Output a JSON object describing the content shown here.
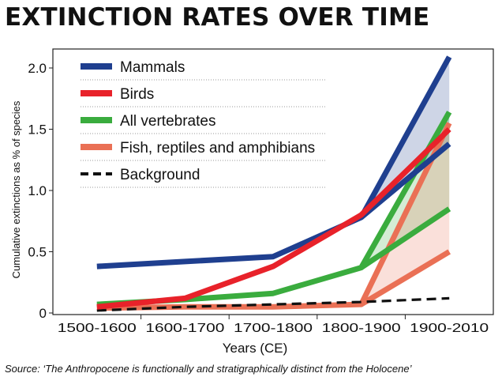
{
  "chart_data": {
    "type": "line",
    "title": "EXTINCTION RATES OVER TIME",
    "xlabel": "Years (CE)",
    "ylabel": "Cumulative extinctions as % of species",
    "categories": [
      "1500-1600",
      "1600-1700",
      "1700-1800",
      "1800-1900",
      "1900-2010"
    ],
    "ylim": [
      0,
      2.1
    ],
    "yticks": [
      0,
      0.5,
      1.0,
      1.5,
      2.0
    ],
    "ytick_labels": [
      "0",
      "0.5",
      "1.0",
      "1.5",
      "2.0"
    ],
    "grid": false,
    "legend_position": "top-left",
    "series": [
      {
        "name": "Mammals",
        "color": "#1f3f8f",
        "values": [
          0.38,
          0.42,
          0.46,
          0.78,
          2.09
        ],
        "final_range": [
          1.38,
          2.09
        ],
        "style": "solid"
      },
      {
        "name": "Birds",
        "color": "#e8222a",
        "values": [
          0.05,
          0.12,
          0.38,
          0.8,
          1.5
        ],
        "style": "solid"
      },
      {
        "name": "All vertebrates",
        "color": "#3aac3e",
        "values": [
          0.07,
          0.11,
          0.16,
          0.37,
          1.64
        ],
        "final_range": [
          0.85,
          1.64
        ],
        "style": "solid"
      },
      {
        "name": "Fish, reptiles and amphibians",
        "color": "#ea7055",
        "values": [
          0.04,
          0.05,
          0.05,
          0.07,
          1.55
        ],
        "final_range": [
          0.5,
          1.55
        ],
        "style": "solid"
      },
      {
        "name": "Background",
        "color": "#111111",
        "values": [
          0.02,
          0.05,
          0.07,
          0.09,
          0.12
        ],
        "style": "dashed"
      }
    ],
    "source": "Source: ‘The Anthropocene is functionally and stratigraphically distinct from the Holocene’"
  }
}
